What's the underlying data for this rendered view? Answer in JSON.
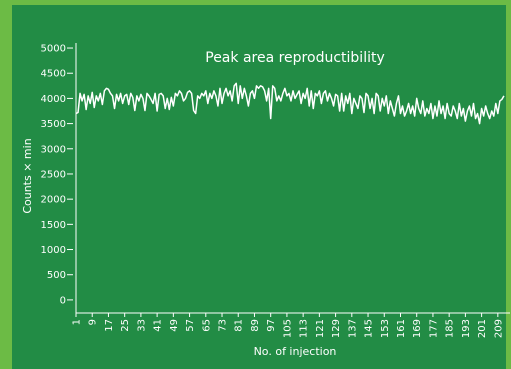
{
  "chart_data": {
    "type": "line",
    "title": "Peak area reproductibility",
    "x_label": "No. of injection",
    "y_label": "Counts × min",
    "x": [
      1,
      2,
      3,
      4,
      5,
      6,
      7,
      8,
      9,
      10,
      11,
      12,
      13,
      14,
      15,
      16,
      17,
      18,
      19,
      20,
      21,
      22,
      23,
      24,
      25,
      26,
      27,
      28,
      29,
      30,
      31,
      32,
      33,
      34,
      35,
      36,
      37,
      38,
      39,
      40,
      41,
      42,
      43,
      44,
      45,
      46,
      47,
      48,
      49,
      50,
      51,
      52,
      53,
      54,
      55,
      56,
      57,
      58,
      59,
      60,
      61,
      62,
      63,
      64,
      65,
      66,
      67,
      68,
      69,
      70,
      71,
      72,
      73,
      74,
      75,
      76,
      77,
      78,
      79,
      80,
      81,
      82,
      83,
      84,
      85,
      86,
      87,
      88,
      89,
      90,
      91,
      92,
      93,
      94,
      95,
      96,
      97,
      98,
      99,
      100,
      101,
      102,
      103,
      104,
      105,
      106,
      107,
      108,
      109,
      110,
      111,
      112,
      113,
      114,
      115,
      116,
      117,
      118,
      119,
      120,
      121,
      122,
      123,
      124,
      125,
      126,
      127,
      128,
      129,
      130,
      131,
      132,
      133,
      134,
      135,
      136,
      137,
      138,
      139,
      140,
      141,
      142,
      143,
      144,
      145,
      146,
      147,
      148,
      149,
      150,
      151,
      152,
      153,
      154,
      155,
      156,
      157,
      158,
      159,
      160,
      161,
      162,
      163,
      164,
      165,
      166,
      167,
      168,
      169,
      170,
      171,
      172,
      173,
      174,
      175,
      176,
      177,
      178,
      179,
      180,
      181,
      182,
      183,
      184,
      185,
      186,
      187,
      188,
      189,
      190,
      191,
      192,
      193,
      194,
      195,
      196,
      197,
      198,
      199,
      200,
      201,
      202,
      203,
      204,
      205,
      206,
      207,
      208,
      209,
      210,
      211,
      212
    ],
    "series": [
      {
        "color": "#ffffff",
        "values": [
          3700,
          3720,
          4100,
          3950,
          4080,
          3780,
          4050,
          3900,
          4120,
          3820,
          4050,
          3950,
          4100,
          3880,
          4150,
          4200,
          4180,
          4100,
          4050,
          3800,
          4080,
          3950,
          4100,
          3900,
          4050,
          4080,
          3880,
          4100,
          4020,
          3760,
          4050,
          3950,
          4080,
          4000,
          3760,
          4100,
          4050,
          3980,
          3900,
          4100,
          3750,
          4080,
          4100,
          4050,
          3800,
          4000,
          3780,
          4020,
          3850,
          4100,
          4050,
          4150,
          4100,
          3950,
          4000,
          4120,
          4150,
          4100,
          3760,
          3700,
          4050,
          4000,
          4100,
          4050,
          4150,
          3900,
          4100,
          4000,
          4150,
          4050,
          3850,
          4200,
          3900,
          4100,
          4200,
          4050,
          4150,
          3950,
          4250,
          4300,
          3900,
          4250,
          4000,
          4200,
          4050,
          3850,
          4100,
          4150,
          4000,
          4250,
          4200,
          4250,
          4230,
          4150,
          3950,
          4200,
          3600,
          4250,
          4200,
          3950,
          4050,
          3950,
          4100,
          4200,
          4050,
          4100,
          3950,
          4150,
          4000,
          4080,
          4150,
          3900,
          4100,
          4000,
          4200,
          3850,
          4150,
          3800,
          4100,
          4050,
          4150,
          3900,
          4100,
          4150,
          3950,
          4100,
          4000,
          3850,
          4080,
          4050,
          3750,
          4100,
          3750,
          4050,
          3900,
          4100,
          3700,
          4000,
          3900,
          3800,
          4050,
          4000,
          3720,
          4100,
          4050,
          3800,
          4000,
          3700,
          4100,
          4050,
          3750,
          4000,
          3850,
          4050,
          3700,
          3950,
          3800,
          3650,
          3900,
          4050,
          3700,
          3850,
          3650,
          3750,
          3900,
          3700,
          3850,
          3650,
          4000,
          3800,
          3700,
          3950,
          3650,
          3800,
          3700,
          3900,
          3600,
          3850,
          3650,
          3950,
          3700,
          3850,
          3600,
          3900,
          3700,
          3650,
          3850,
          3750,
          3600,
          3900,
          3650,
          3800,
          3550,
          3750,
          3850,
          3650,
          3900,
          3600,
          3700,
          3500,
          3800,
          3650,
          3850,
          3700,
          3600,
          3750,
          3650,
          3900,
          3700,
          3950,
          3980,
          4050
        ]
      }
    ],
    "xlim": [
      1,
      215
    ],
    "xticks": [
      1,
      9,
      17,
      25,
      33,
      41,
      49,
      57,
      65,
      73,
      81,
      89,
      97,
      105,
      113,
      121,
      129,
      137,
      145,
      153,
      161,
      169,
      177,
      185,
      193,
      201,
      209
    ],
    "ylim": [
      -260,
      5100
    ],
    "yticks": [
      0,
      500,
      1000,
      1500,
      2000,
      2500,
      3000,
      3500,
      4000,
      4500,
      5000
    ]
  }
}
